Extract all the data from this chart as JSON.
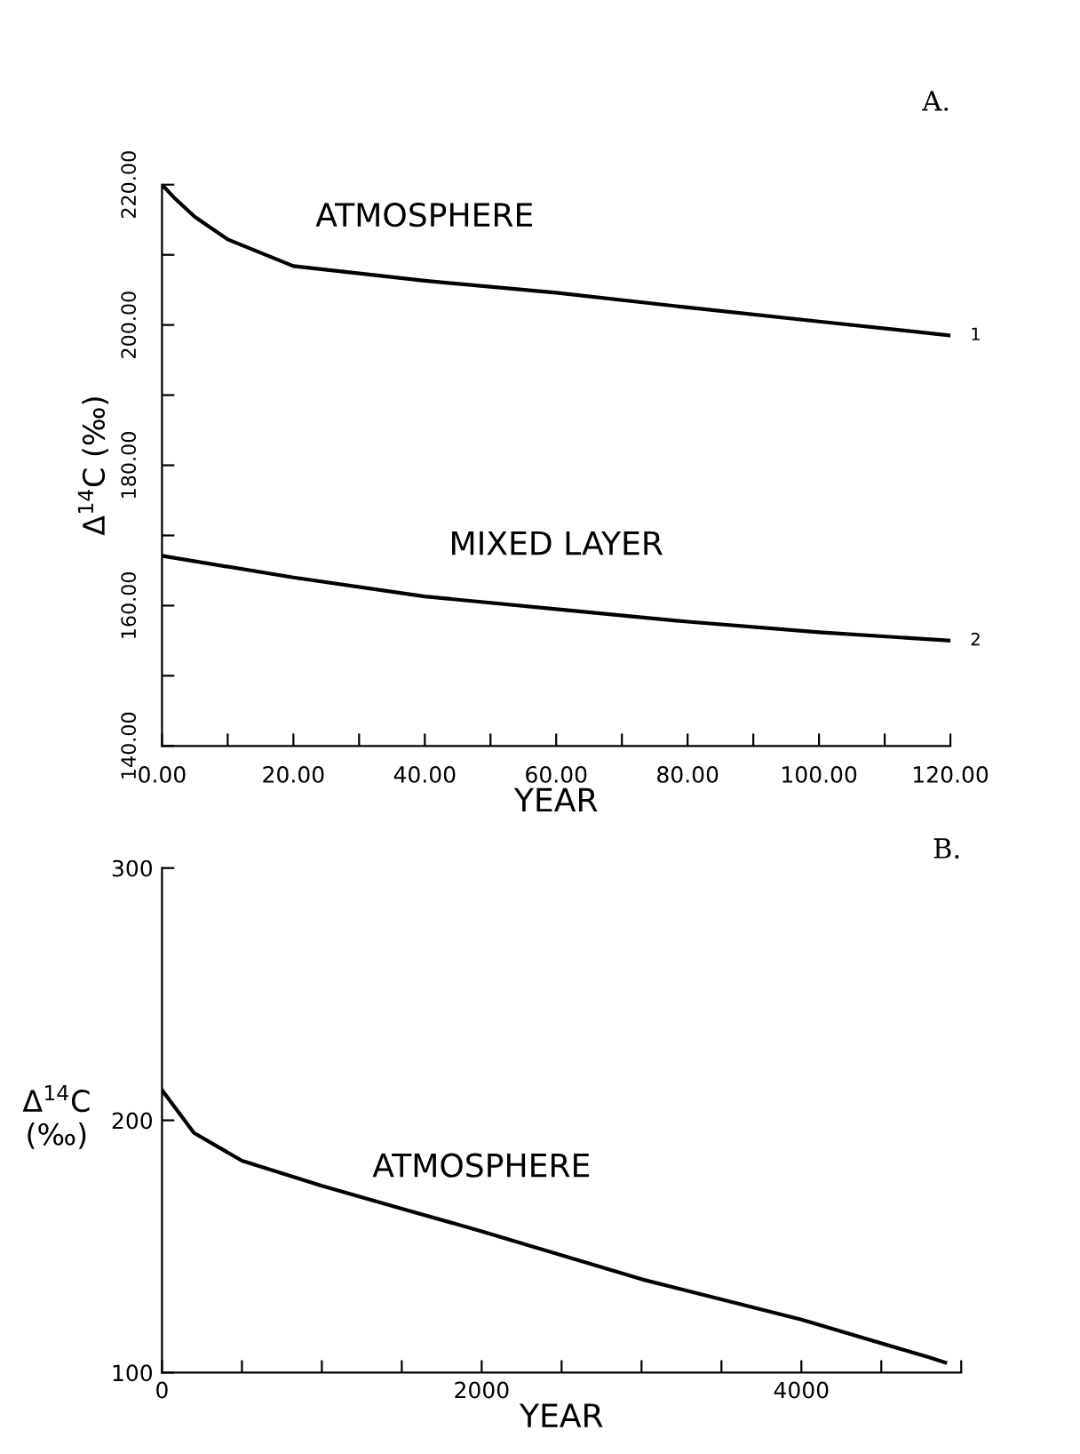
{
  "chart_data": [
    {
      "type": "line",
      "title": "A.",
      "xlabel": "YEAR",
      "ylabel": "Δ$^{14}$C (‰)",
      "legend": false,
      "grid": false,
      "marker": "none",
      "line_style": "solid",
      "xlim": [
        0,
        120
      ],
      "ylim": [
        140,
        220
      ],
      "xticks": [
        {
          "value": 0,
          "label": "0.00"
        },
        {
          "value": 10,
          "label": null
        },
        {
          "value": 20,
          "label": "20.00"
        },
        {
          "value": 30,
          "label": null
        },
        {
          "value": 40,
          "label": "40.00"
        },
        {
          "value": 50,
          "label": null
        },
        {
          "value": 60,
          "label": "60.00"
        },
        {
          "value": 70,
          "label": null
        },
        {
          "value": 80,
          "label": "80.00"
        },
        {
          "value": 90,
          "label": null
        },
        {
          "value": 100,
          "label": "100.00"
        },
        {
          "value": 110,
          "label": null
        },
        {
          "value": 120,
          "label": "120.00"
        }
      ],
      "yticks": [
        {
          "value": 140,
          "label": "140.00"
        },
        {
          "value": 150,
          "label": null
        },
        {
          "value": 160,
          "label": "160.00"
        },
        {
          "value": 170,
          "label": null
        },
        {
          "value": 180,
          "label": "180.00"
        },
        {
          "value": 190,
          "label": null
        },
        {
          "value": 200,
          "label": "200.00"
        },
        {
          "value": 210,
          "label": null
        },
        {
          "value": 220,
          "label": "220.00"
        }
      ],
      "series": [
        {
          "name": "ATMOSPHERE",
          "color": "#000000",
          "x": [
            0,
            2,
            5,
            10,
            20,
            40,
            60,
            80,
            100,
            120
          ],
          "values": [
            220,
            218,
            215.4,
            212.2,
            208.4,
            206.3,
            204.6,
            202.5,
            200.5,
            198.5
          ]
        },
        {
          "name": "MIXED LAYER",
          "color": "#000000",
          "x": [
            0,
            20,
            40,
            60,
            80,
            100,
            120
          ],
          "values": [
            167.1,
            164.0,
            161.3,
            159.5,
            157.7,
            156.2,
            155
          ]
        }
      ],
      "annotations": [
        {
          "text": "1",
          "x": 120,
          "y": 198.5
        },
        {
          "text": "2",
          "x": 120,
          "y": 155
        }
      ]
    },
    {
      "type": "line",
      "title": "B.",
      "xlabel": "YEAR",
      "ylabel": "Δ$^{14}$C\n(‰)",
      "legend": false,
      "grid": false,
      "marker": "none",
      "line_style": "solid",
      "xlim": [
        0,
        5000
      ],
      "ylim": [
        100,
        300
      ],
      "xticks": [
        {
          "value": 0,
          "label": "0"
        },
        {
          "value": 500,
          "label": null
        },
        {
          "value": 1000,
          "label": null
        },
        {
          "value": 1500,
          "label": null
        },
        2000,
        {
          "value": 2500,
          "label": null
        },
        {
          "value": 3000,
          "label": null
        },
        {
          "value": 3500,
          "label": null
        },
        4000,
        {
          "value": 4500,
          "label": null
        },
        {
          "value": 5000,
          "label": null
        }
      ],
      "yticks": [
        100,
        200,
        300
      ],
      "series": [
        {
          "name": "ATMOSPHERE",
          "color": "#000000",
          "x": [
            0,
            200,
            500,
            1000,
            1500,
            2000,
            3000,
            4000,
            4800,
            4900
          ],
          "values": [
            212,
            195,
            184,
            174,
            165,
            156,
            137,
            121,
            106,
            104
          ]
        }
      ]
    }
  ]
}
